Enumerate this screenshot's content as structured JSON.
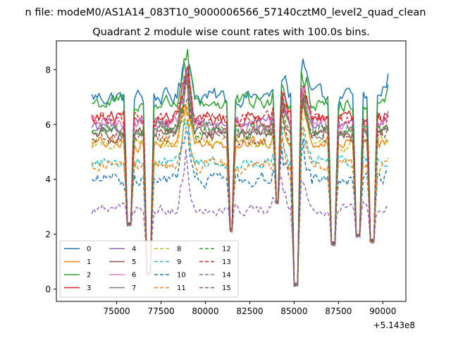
{
  "chart_data": {
    "type": "line",
    "suptitle": "n file: modeM0/AS1A14_083T10_9000006566_57140cztM0_level2_quad_clean",
    "title": "Quadrant 2 module wise count rates with 100.0s bins.",
    "xlabel": "",
    "ylabel": "",
    "x_offset_label": "+5.143e8",
    "xlim": [
      71600,
      91300
    ],
    "ylim": [
      -0.45,
      9.05
    ],
    "x_ticks": [
      75000,
      77500,
      80000,
      82500,
      85000,
      87500,
      90000
    ],
    "x_tick_labels": [
      "75000",
      "77500",
      "80000",
      "82500",
      "85000",
      "87500",
      "90000"
    ],
    "y_ticks": [
      0,
      2,
      4,
      6,
      8
    ],
    "y_tick_labels": [
      "0",
      "2",
      "4",
      "6",
      "8"
    ],
    "grid": false,
    "legend_position": "lower-left",
    "legend_columns": 4,
    "x_start": 73600,
    "x_end": 90300,
    "bin_width_s": 100,
    "gaps": [
      {
        "center": 75700,
        "min": 2.2
      },
      {
        "center": 76800,
        "min": 0.4
      },
      {
        "center": 81450,
        "min": 2.0
      },
      {
        "center": 84050,
        "min": 3.0
      },
      {
        "center": 85100,
        "min": 0.0
      },
      {
        "center": 87200,
        "min": 1.5
      },
      {
        "center": 88600,
        "min": 1.8
      },
      {
        "center": 89400,
        "min": 1.6
      }
    ],
    "spikes": [
      {
        "center": 78900,
        "amp": 1.8
      },
      {
        "center": 84200,
        "amp": 1.3
      },
      {
        "center": 85500,
        "amp": 1.3
      }
    ],
    "series": [
      {
        "name": "0",
        "color": "#1f77b4",
        "style": "solid",
        "level": 7.0,
        "jitter": 0.55,
        "end_level": 8.0
      },
      {
        "name": "1",
        "color": "#ff7f0e",
        "style": "solid",
        "level": 5.3,
        "jitter": 0.45,
        "end_level": 5.4
      },
      {
        "name": "2",
        "color": "#2ca02c",
        "style": "solid",
        "level": 6.8,
        "jitter": 0.55,
        "end_level": 7.5
      },
      {
        "name": "3",
        "color": "#d62728",
        "style": "solid",
        "level": 6.2,
        "jitter": 0.5,
        "end_level": 6.5
      },
      {
        "name": "4",
        "color": "#9467bd",
        "style": "solid",
        "level": 6.0,
        "jitter": 0.45,
        "end_level": 6.6
      },
      {
        "name": "5",
        "color": "#8c564b",
        "style": "solid",
        "level": 5.7,
        "jitter": 0.45,
        "end_level": 5.8
      },
      {
        "name": "6",
        "color": "#e377c2",
        "style": "solid",
        "level": 6.0,
        "jitter": 0.5,
        "end_level": 6.2
      },
      {
        "name": "7",
        "color": "#7f7f7f",
        "style": "solid",
        "level": 5.8,
        "jitter": 0.45,
        "end_level": 6.0
      },
      {
        "name": "8",
        "color": "#bcbd22",
        "style": "dashed",
        "level": 5.3,
        "jitter": 0.4,
        "end_level": 5.5
      },
      {
        "name": "9",
        "color": "#17becf",
        "style": "dashed",
        "level": 4.6,
        "jitter": 0.4,
        "end_level": 4.9
      },
      {
        "name": "10",
        "color": "#1f77b4",
        "style": "dashed",
        "level": 4.0,
        "jitter": 0.45,
        "end_level": 4.3
      },
      {
        "name": "11",
        "color": "#ff7f0e",
        "style": "dashed",
        "level": 4.5,
        "jitter": 0.4,
        "end_level": 4.6
      },
      {
        "name": "12",
        "color": "#2ca02c",
        "style": "dashed",
        "level": 5.8,
        "jitter": 0.5,
        "end_level": 6.0
      },
      {
        "name": "13",
        "color": "#d62728",
        "style": "dashed",
        "level": 6.2,
        "jitter": 0.5,
        "end_level": 6.3
      },
      {
        "name": "14",
        "color": "#9467bd",
        "style": "dashed",
        "level": 2.9,
        "jitter": 0.35,
        "end_level": 3.0
      },
      {
        "name": "15",
        "color": "#8c564b",
        "style": "dashed",
        "level": 5.5,
        "jitter": 0.45,
        "end_level": 5.9
      }
    ]
  }
}
